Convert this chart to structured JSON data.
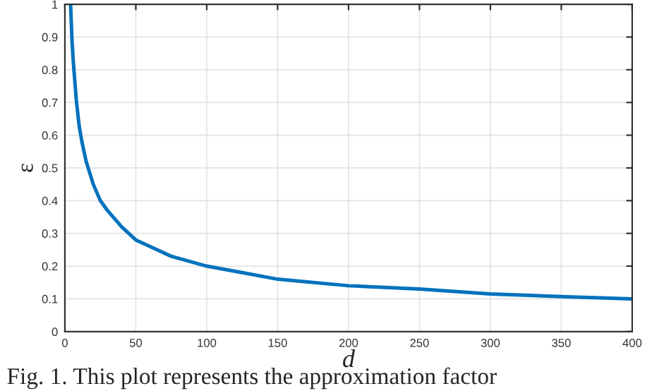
{
  "chart_data": {
    "type": "line",
    "xlabel": "d",
    "ylabel": "ε",
    "x": [
      4,
      5,
      6,
      8,
      10,
      12,
      15,
      20,
      25,
      30,
      40,
      50,
      60,
      75,
      100,
      125,
      150,
      200,
      250,
      300,
      350,
      400
    ],
    "series": [
      {
        "color": "#0072bd",
        "values": [
          1,
          0.89,
          0.82,
          0.71,
          0.63,
          0.58,
          0.52,
          0.45,
          0.4,
          0.37,
          0.32,
          0.28,
          0.26,
          0.23,
          0.2,
          0.18,
          0.16,
          0.14,
          0.13,
          0.115,
          0.107,
          0.1
        ]
      }
    ],
    "xlim": [
      0,
      400
    ],
    "xticks": [
      0,
      50,
      100,
      150,
      200,
      250,
      300,
      350,
      400
    ],
    "ylim": [
      0,
      1
    ],
    "yticks": [
      0,
      0.1,
      0.2,
      0.3,
      0.4,
      0.5,
      0.6,
      0.7,
      0.8,
      0.9,
      1
    ],
    "grid": true,
    "line_style": "solid",
    "annotations": [
      "Fig. 1. This plot represents the approximation factor"
    ]
  }
}
